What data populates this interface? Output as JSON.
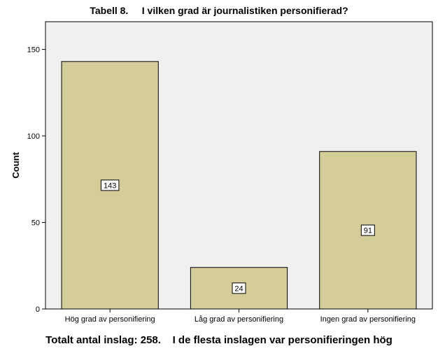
{
  "chart_data": {
    "type": "bar",
    "title": "Tabell 8.     I vilken grad är journalistiken personifierad?",
    "categories": [
      "Hög grad av personifiering",
      "Låg grad av personifiering",
      "Ingen grad av personifiering"
    ],
    "values": [
      143,
      24,
      91
    ],
    "data_labels": [
      "143",
      "24",
      "91"
    ],
    "xlabel": "",
    "ylabel": "Count",
    "ylim": [
      0,
      166
    ],
    "yticks": [
      0,
      50,
      100,
      150
    ],
    "ytick_labels": [
      "0",
      "50",
      "100",
      "150"
    ],
    "grid": false,
    "legend": "none",
    "colors": {
      "bar_fill": "#d4cd9a",
      "bar_stroke": "#000000",
      "plot_background": "#f0f0f0",
      "label_box_fill": "#ffffff"
    },
    "footer": "Totalt antal inslag: 258.    I de flesta inslagen var personifieringen hög"
  }
}
